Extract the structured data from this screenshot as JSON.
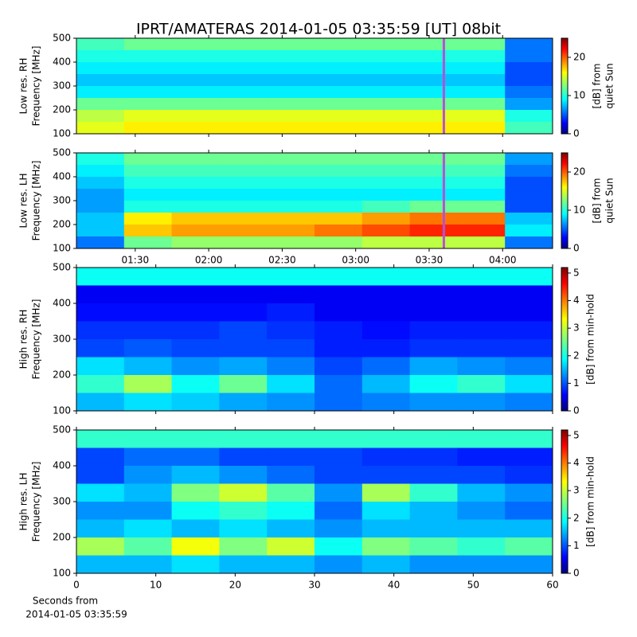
{
  "chart_data": [
    {
      "type": "heatmap",
      "title": "IPRT/AMATERAS 2014-01-05 03:35:59 [UT]   08bit",
      "ylabel": [
        "Low res. RH",
        "Frequency [MHz]"
      ],
      "colorbar_label": [
        "[dB] from",
        "quiet Sun"
      ],
      "colormap": "jet",
      "xlim": [
        1.1,
        4.34
      ],
      "xticks": [
        1.5,
        2,
        2.5,
        3,
        3.5,
        4
      ],
      "ylim": [
        100,
        500
      ],
      "yticks": [
        100,
        200,
        300,
        400,
        500
      ],
      "zlim": [
        0,
        25
      ],
      "zticks": [
        0,
        10,
        20
      ],
      "marker": 3.6,
      "marker_color": "#b84fd8",
      "z": [
        [
          11,
          12,
          12,
          12,
          12,
          12,
          12,
          12,
          12,
          6
        ],
        [
          10,
          10,
          10,
          10,
          10,
          10,
          10,
          10,
          10,
          6
        ],
        [
          9,
          9,
          9,
          9,
          9,
          9,
          9,
          9,
          9,
          5
        ],
        [
          8,
          8,
          8,
          8,
          8,
          8,
          8,
          8,
          8,
          5
        ],
        [
          9,
          9,
          9,
          9,
          9,
          9,
          9,
          9,
          9,
          6
        ],
        [
          12,
          12,
          12,
          12,
          12,
          12,
          12,
          12,
          12,
          7
        ],
        [
          14,
          15,
          15,
          15,
          15,
          15,
          15,
          15,
          15,
          10
        ],
        [
          15,
          16,
          16,
          16,
          16,
          16,
          16,
          16,
          16,
          11
        ]
      ]
    },
    {
      "type": "heatmap",
      "ylabel": [
        "Low res. LH",
        "Frequency [MHz]"
      ],
      "colorbar_label": [
        "[dB] from",
        "quiet Sun"
      ],
      "colormap": "jet",
      "xlim": [
        1.1,
        4.34
      ],
      "xticks": [
        {
          "value": 1.5,
          "label": "01:30"
        },
        {
          "value": 2,
          "label": "02:00"
        },
        {
          "value": 2.5,
          "label": "02:30"
        },
        {
          "value": 3,
          "label": "03:00"
        },
        {
          "value": 3.5,
          "label": "03:30"
        },
        {
          "value": 4,
          "label": "04:00"
        }
      ],
      "ylim": [
        100,
        500
      ],
      "yticks": [
        100,
        200,
        300,
        400,
        500
      ],
      "zlim": [
        0,
        25
      ],
      "zticks": [
        0,
        10,
        20
      ],
      "marker": 3.6,
      "marker_color": "#b84fd8",
      "z": [
        [
          10,
          12,
          12,
          12,
          12,
          12,
          12,
          12,
          12,
          7
        ],
        [
          9,
          11,
          11,
          11,
          11,
          11,
          11,
          11,
          11,
          6
        ],
        [
          8,
          10,
          10,
          10,
          10,
          10,
          10,
          10,
          10,
          5
        ],
        [
          7,
          9,
          9,
          9,
          9,
          9,
          9,
          9,
          9,
          5
        ],
        [
          7,
          10,
          10,
          10,
          10,
          10,
          11,
          12,
          12,
          5
        ],
        [
          8,
          16,
          17,
          17,
          17,
          17,
          18,
          19,
          19,
          8
        ],
        [
          8,
          17,
          18,
          18,
          18,
          19,
          20,
          21,
          21,
          9
        ],
        [
          6,
          12,
          13,
          13,
          13,
          13,
          14,
          14,
          14,
          6
        ]
      ]
    },
    {
      "type": "heatmap",
      "ylabel": [
        "High res. RH",
        "Frequency [MHz]"
      ],
      "colorbar_label": [
        "[dB] from min-hold"
      ],
      "colormap": "jet",
      "xlim": [
        0,
        60
      ],
      "xticks": [
        0,
        10,
        20,
        30,
        40,
        50,
        60
      ],
      "ylim": [
        100,
        500
      ],
      "yticks": [
        100,
        200,
        300,
        400,
        500
      ],
      "zlim": [
        0,
        5.2
      ],
      "zticks": [
        0,
        1,
        2,
        3,
        4,
        5
      ],
      "z": [
        [
          2.0,
          2.0,
          2.0,
          2.0,
          2.0,
          2.0,
          2.0,
          2.0,
          2.0,
          2.0
        ],
        [
          0.6,
          0.6,
          0.6,
          0.6,
          0.6,
          0.6,
          0.6,
          0.6,
          0.6,
          0.6
        ],
        [
          0.7,
          0.7,
          0.7,
          0.7,
          0.8,
          0.6,
          0.6,
          0.6,
          0.6,
          0.6
        ],
        [
          0.9,
          0.9,
          0.9,
          1.0,
          0.9,
          0.8,
          0.7,
          0.8,
          0.8,
          0.8
        ],
        [
          1.0,
          1.1,
          1.0,
          1.0,
          1.0,
          0.8,
          0.8,
          0.9,
          0.9,
          0.9
        ],
        [
          1.8,
          1.6,
          1.4,
          1.5,
          1.3,
          1.0,
          1.2,
          1.5,
          1.4,
          1.3
        ],
        [
          2.2,
          2.8,
          2.0,
          2.5,
          1.8,
          1.2,
          1.6,
          2.0,
          2.2,
          1.8
        ],
        [
          1.6,
          1.8,
          1.7,
          1.5,
          1.4,
          1.2,
          1.3,
          1.4,
          1.4,
          1.3
        ]
      ]
    },
    {
      "type": "heatmap",
      "ylabel": [
        "High res. LH",
        "Frequency [MHz]"
      ],
      "colorbar_label": [
        "[dB] from min-hold"
      ],
      "colormap": "jet",
      "xlim": [
        0,
        60
      ],
      "xticks": [
        0,
        10,
        20,
        30,
        40,
        50,
        60
      ],
      "xlabel": [
        "Seconds from",
        "2014-01-05 03:35:59"
      ],
      "ylim": [
        100,
        500
      ],
      "yticks": [
        100,
        200,
        300,
        400,
        500
      ],
      "zlim": [
        0,
        5.2
      ],
      "zticks": [
        0,
        1,
        2,
        3,
        4,
        5
      ],
      "z": [
        [
          2.2,
          2.2,
          2.2,
          2.2,
          2.2,
          2.2,
          2.2,
          2.2,
          2.2,
          2.2
        ],
        [
          1.0,
          1.2,
          1.2,
          1.0,
          1.0,
          1.0,
          0.9,
          0.9,
          0.8,
          0.8
        ],
        [
          1.0,
          1.4,
          1.6,
          1.4,
          1.2,
          1.0,
          1.0,
          1.0,
          1.0,
          0.9
        ],
        [
          1.8,
          1.6,
          2.6,
          3.0,
          2.4,
          1.4,
          2.8,
          2.2,
          1.6,
          1.4
        ],
        [
          1.4,
          1.4,
          2.0,
          2.2,
          2.0,
          1.2,
          1.8,
          1.6,
          1.4,
          1.2
        ],
        [
          1.6,
          1.8,
          1.6,
          1.8,
          1.6,
          1.4,
          1.6,
          1.6,
          1.6,
          1.6
        ],
        [
          2.8,
          2.4,
          3.2,
          2.6,
          3.0,
          2.0,
          2.6,
          2.4,
          2.2,
          2.4
        ],
        [
          1.6,
          1.6,
          1.8,
          1.6,
          1.6,
          1.4,
          1.6,
          1.4,
          1.4,
          1.4
        ]
      ]
    }
  ]
}
